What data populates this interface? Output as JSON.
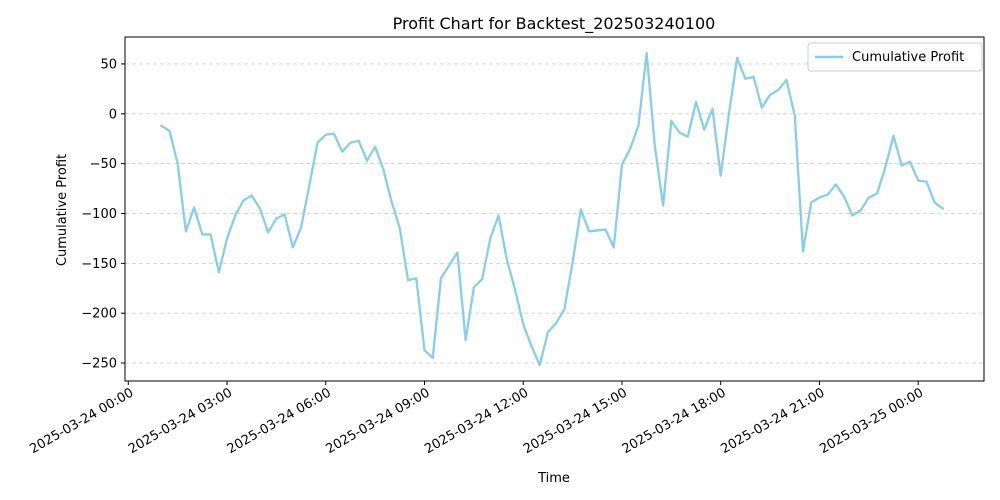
{
  "chart_data": {
    "type": "line",
    "title": "Profit Chart for Backtest_202503240100",
    "xlabel": "Time",
    "ylabel": "Cumulative Profit",
    "grid": {
      "y": true,
      "x": false,
      "style": "dashed"
    },
    "legend": {
      "placement": "top-right"
    },
    "xlim": [
      "2025-03-23 23:54",
      "2025-03-25 02:00"
    ],
    "ylim": [
      -268,
      77
    ],
    "x_ticks": [
      {
        "value": "2025-03-24 00:00",
        "label": "2025-03-24 00:00"
      },
      {
        "value": "2025-03-24 03:00",
        "label": "2025-03-24 03:00"
      },
      {
        "value": "2025-03-24 06:00",
        "label": "2025-03-24 06:00"
      },
      {
        "value": "2025-03-24 09:00",
        "label": "2025-03-24 09:00"
      },
      {
        "value": "2025-03-24 12:00",
        "label": "2025-03-24 12:00"
      },
      {
        "value": "2025-03-24 15:00",
        "label": "2025-03-24 15:00"
      },
      {
        "value": "2025-03-24 18:00",
        "label": "2025-03-24 18:00"
      },
      {
        "value": "2025-03-24 21:00",
        "label": "2025-03-24 21:00"
      },
      {
        "value": "2025-03-25 00:00",
        "label": "2025-03-25 00:00"
      }
    ],
    "y_ticks": [
      {
        "value": 50,
        "label": "50"
      },
      {
        "value": 0,
        "label": "0"
      },
      {
        "value": -50,
        "label": "−50"
      },
      {
        "value": -100,
        "label": "−100"
      },
      {
        "value": -150,
        "label": "−150"
      },
      {
        "value": -200,
        "label": "−200"
      },
      {
        "value": -250,
        "label": "−250"
      }
    ],
    "series": [
      {
        "name": "Cumulative Profit",
        "color": "#87ceeb",
        "x": [
          "2025-03-24 01:00",
          "2025-03-24 01:15",
          "2025-03-24 01:30",
          "2025-03-24 01:45",
          "2025-03-24 02:00",
          "2025-03-24 02:15",
          "2025-03-24 02:30",
          "2025-03-24 02:45",
          "2025-03-24 03:00",
          "2025-03-24 03:15",
          "2025-03-24 03:30",
          "2025-03-24 03:45",
          "2025-03-24 04:00",
          "2025-03-24 04:15",
          "2025-03-24 04:30",
          "2025-03-24 04:45",
          "2025-03-24 05:00",
          "2025-03-24 05:15",
          "2025-03-24 05:30",
          "2025-03-24 05:45",
          "2025-03-24 06:00",
          "2025-03-24 06:15",
          "2025-03-24 06:30",
          "2025-03-24 06:45",
          "2025-03-24 07:00",
          "2025-03-24 07:15",
          "2025-03-24 07:30",
          "2025-03-24 07:45",
          "2025-03-24 08:00",
          "2025-03-24 08:15",
          "2025-03-24 08:30",
          "2025-03-24 08:45",
          "2025-03-24 09:00",
          "2025-03-24 09:15",
          "2025-03-24 09:30",
          "2025-03-24 09:45",
          "2025-03-24 10:00",
          "2025-03-24 10:15",
          "2025-03-24 10:30",
          "2025-03-24 10:45",
          "2025-03-24 11:00",
          "2025-03-24 11:15",
          "2025-03-24 11:30",
          "2025-03-24 11:45",
          "2025-03-24 12:00",
          "2025-03-24 12:15",
          "2025-03-24 12:30",
          "2025-03-24 12:45",
          "2025-03-24 13:00",
          "2025-03-24 13:15",
          "2025-03-24 13:30",
          "2025-03-24 13:45",
          "2025-03-24 14:00",
          "2025-03-24 14:15",
          "2025-03-24 14:30",
          "2025-03-24 14:45",
          "2025-03-24 15:00",
          "2025-03-24 15:15",
          "2025-03-24 15:30",
          "2025-03-24 15:45",
          "2025-03-24 16:00",
          "2025-03-24 16:15",
          "2025-03-24 16:30",
          "2025-03-24 16:45",
          "2025-03-24 17:00",
          "2025-03-24 17:15",
          "2025-03-24 17:30",
          "2025-03-24 17:45",
          "2025-03-24 18:00",
          "2025-03-24 18:15",
          "2025-03-24 18:30",
          "2025-03-24 18:45",
          "2025-03-24 19:00",
          "2025-03-24 19:15",
          "2025-03-24 19:30",
          "2025-03-24 19:45",
          "2025-03-24 20:00",
          "2025-03-24 20:15",
          "2025-03-24 20:30",
          "2025-03-24 20:45",
          "2025-03-24 21:00",
          "2025-03-24 21:15",
          "2025-03-24 21:30",
          "2025-03-24 21:45",
          "2025-03-24 22:00",
          "2025-03-24 22:15",
          "2025-03-24 22:30",
          "2025-03-24 22:45",
          "2025-03-24 23:00",
          "2025-03-24 23:15",
          "2025-03-24 23:30",
          "2025-03-24 23:45",
          "2025-03-25 00:00",
          "2025-03-25 00:15",
          "2025-03-25 00:30",
          "2025-03-25 00:45"
        ],
        "values": [
          -12,
          -17,
          -50,
          -118,
          -94,
          -121,
          -121,
          -159,
          -125,
          -102,
          -87,
          -82,
          -95,
          -119,
          -105,
          -101,
          -134,
          -114,
          -72,
          -29,
          -21,
          -20,
          -38,
          -29,
          -27,
          -47,
          -33,
          -56,
          -88,
          -115,
          -167,
          -165,
          -237,
          -245,
          -165,
          -152,
          -139,
          -227,
          -174,
          -166,
          -125,
          -102,
          -146,
          -176,
          -211,
          -233,
          -252,
          -219,
          -210,
          -196,
          -149,
          -96,
          -118,
          -117,
          -116,
          -134,
          -51,
          -35,
          -12,
          61,
          -33,
          -92,
          -7,
          -19,
          -23,
          12,
          -16,
          5,
          -62,
          0,
          56,
          35,
          37,
          6,
          19,
          24,
          34,
          -2,
          -138,
          -89,
          -84,
          -81,
          -71,
          -83,
          -102,
          -97,
          -84,
          -80,
          -54,
          -22,
          -52,
          -48,
          -67,
          -68,
          -89,
          -95
        ]
      }
    ]
  }
}
